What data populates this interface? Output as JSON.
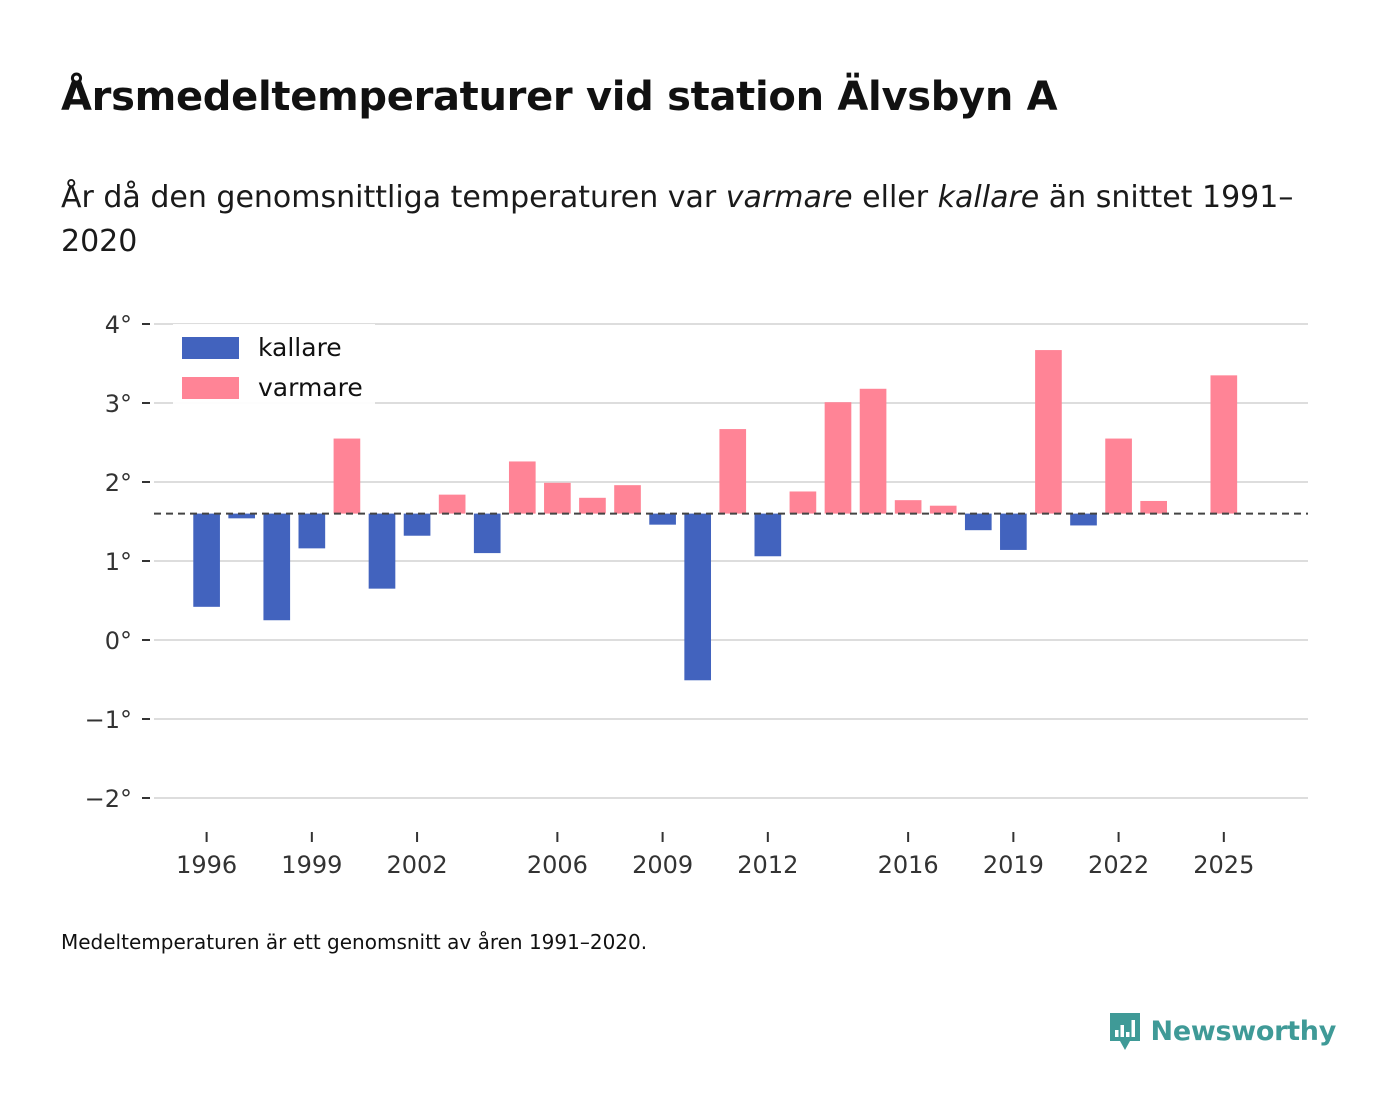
{
  "header": {
    "title": "Årsmedeltemperaturer vid station Älvsbyn A",
    "subtitle_prefix": "År då den genomsnittliga temperaturen var ",
    "subtitle_warm": "varmare",
    "subtitle_mid": " eller ",
    "subtitle_cold": "kallare",
    "subtitle_suffix": " än snittet 1991–2020"
  },
  "footer": {
    "note": "Medeltemperaturen är ett genomsnitt av åren 1991–2020.",
    "brand": "Newsworthy"
  },
  "colors": {
    "cold": "#4263be",
    "warm": "#ff8496",
    "brand": "#3f9a97",
    "grid": "#dddddd",
    "axis_text": "#333333",
    "reference_line": "#444444"
  },
  "chart_data": {
    "type": "bar",
    "title": "Årsmedeltemperaturer vid station Älvsbyn A",
    "xlabel": "",
    "ylabel": "",
    "baseline": 1.6,
    "ylim": [
      -2.3,
      4.1
    ],
    "yticks": [
      4,
      3,
      2,
      1,
      0,
      -1,
      -2
    ],
    "ytick_labels": [
      "4°",
      "3°",
      "2°",
      "1°",
      "0°",
      "−1°",
      "−2°"
    ],
    "xticks": [
      1996,
      1999,
      2002,
      2006,
      2009,
      2012,
      2016,
      2019,
      2022,
      2025
    ],
    "xtick_labels": [
      "1996",
      "1999",
      "2002",
      "2006",
      "2009",
      "2012",
      "2016",
      "2019",
      "2022",
      "2025"
    ],
    "xlim": [
      1994.5,
      2027.4
    ],
    "legend": {
      "position": "top-left",
      "entries": [
        {
          "label": "kallare",
          "color": "#4263be"
        },
        {
          "label": "varmare",
          "color": "#ff8496"
        }
      ]
    },
    "series": [
      {
        "name": "Årsmedeltemperatur",
        "points": [
          {
            "year": 1996,
            "value": 0.42
          },
          {
            "year": 1997,
            "value": 1.54
          },
          {
            "year": 1998,
            "value": 0.25
          },
          {
            "year": 1999,
            "value": 1.16
          },
          {
            "year": 2000,
            "value": 2.55
          },
          {
            "year": 2001,
            "value": 0.65
          },
          {
            "year": 2002,
            "value": 1.32
          },
          {
            "year": 2003,
            "value": 1.84
          },
          {
            "year": 2004,
            "value": 1.1
          },
          {
            "year": 2005,
            "value": 2.26
          },
          {
            "year": 2006,
            "value": 1.99
          },
          {
            "year": 2007,
            "value": 1.8
          },
          {
            "year": 2008,
            "value": 1.96
          },
          {
            "year": 2009,
            "value": 1.46
          },
          {
            "year": 2010,
            "value": -0.51
          },
          {
            "year": 2011,
            "value": 2.67
          },
          {
            "year": 2012,
            "value": 1.06
          },
          {
            "year": 2013,
            "value": 1.88
          },
          {
            "year": 2014,
            "value": 3.01
          },
          {
            "year": 2015,
            "value": 3.18
          },
          {
            "year": 2016,
            "value": 1.77
          },
          {
            "year": 2017,
            "value": 1.7
          },
          {
            "year": 2018,
            "value": 1.39
          },
          {
            "year": 2019,
            "value": 1.14
          },
          {
            "year": 2020,
            "value": 3.67
          },
          {
            "year": 2021,
            "value": 1.45
          },
          {
            "year": 2022,
            "value": 2.55
          },
          {
            "year": 2023,
            "value": 1.76
          },
          {
            "year": 2025,
            "value": 3.35
          }
        ]
      }
    ]
  }
}
